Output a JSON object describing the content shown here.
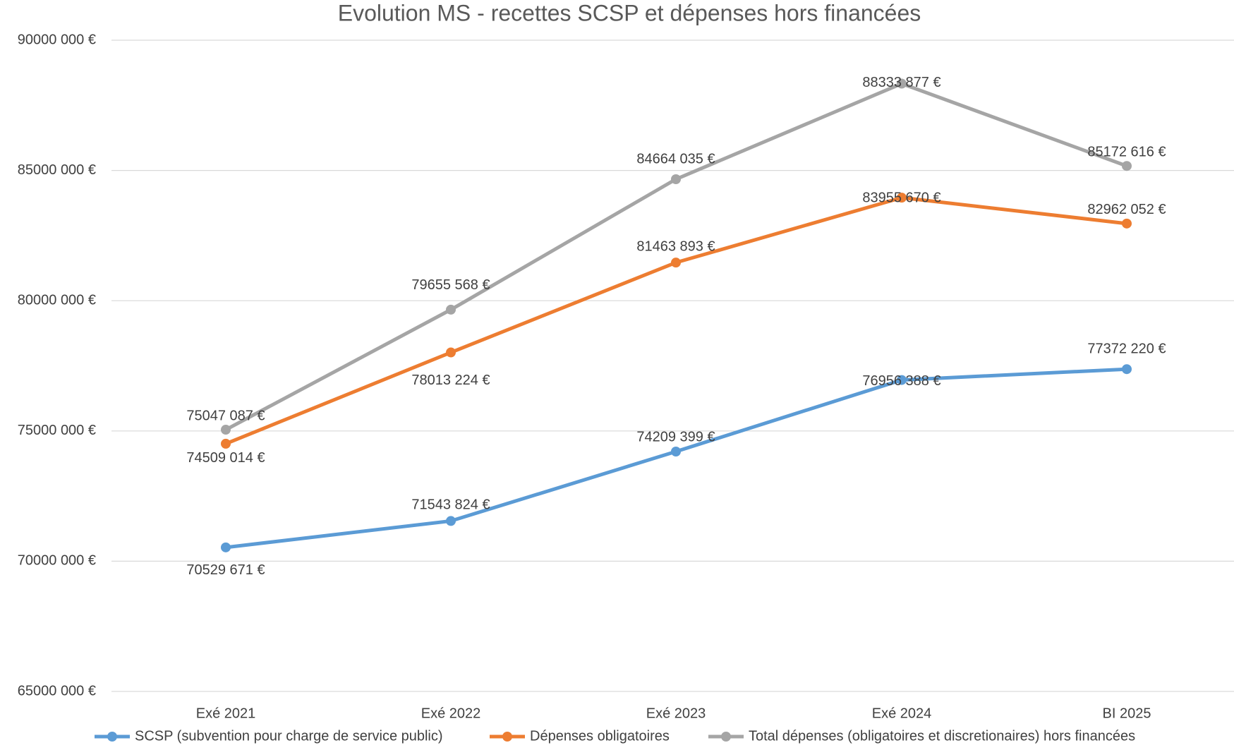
{
  "chart_data": {
    "type": "line",
    "title": "Evolution MS - recettes SCSP et dépenses hors financées",
    "categories": [
      "Exé 2021",
      "Exé 2022",
      "Exé 2023",
      "Exé 2024",
      "BI 2025"
    ],
    "series": [
      {
        "name": "SCSP (subvention pour charge de service public)",
        "color": "#5b9bd5",
        "values": [
          70529671,
          71543824,
          74209399,
          76956388,
          77372220
        ],
        "value_labels": [
          "70529 671 €",
          "71543 824 €",
          "74209 399 €",
          "76956 388 €",
          "77372 220 €"
        ]
      },
      {
        "name": "Dépenses obligatoires",
        "color": "#ed7d31",
        "values": [
          74509014,
          78013224,
          81463893,
          83955670,
          82962052
        ],
        "value_labels": [
          "74509 014 €",
          "78013 224 €",
          "81463 893 €",
          "83955 670 €",
          "82962 052 €"
        ]
      },
      {
        "name": "Total dépenses (obligatoires et discretionaires) hors financées",
        "color": "#a5a5a5",
        "values": [
          75047087,
          79655568,
          84664035,
          88333877,
          85172616
        ],
        "value_labels": [
          "75047 087 €",
          "79655 568 €",
          "84664 035 €",
          "88333 877 €",
          "85172 616 €"
        ]
      }
    ],
    "ylim": [
      65000000,
      90000000
    ],
    "yticks": [
      {
        "value": 65000000,
        "label": "65000 000 €"
      },
      {
        "value": 70000000,
        "label": "70000 000 €"
      },
      {
        "value": 75000000,
        "label": "75000 000 €"
      },
      {
        "value": 80000000,
        "label": "80000 000 €"
      },
      {
        "value": 85000000,
        "label": "85000 000 €"
      },
      {
        "value": 90000000,
        "label": "90000 000 €"
      }
    ],
    "grid": true,
    "legend": "bottom"
  }
}
